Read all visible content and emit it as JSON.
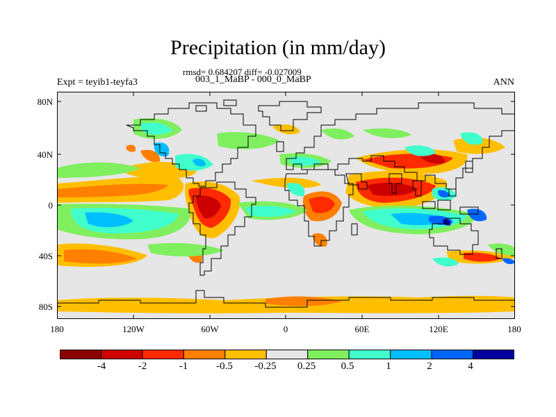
{
  "title": "Precipitation (in mm/day)",
  "stats": "rmsd= 0.684207 diff= -0.027009",
  "subtitle": "003_1_MaBP - 000_0_MaBP",
  "left_label": "Expt = teyib1-teyfa3",
  "right_label": "ANN",
  "lat_ticks": [
    "80N",
    "40N",
    "0",
    "40S",
    "80S"
  ],
  "lon_ticks": [
    "180",
    "120W",
    "60W",
    "0",
    "60E",
    "120E",
    "180"
  ],
  "colorbar": {
    "colors": [
      "#8b0000",
      "#cc0000",
      "#ff2a00",
      "#ff7f00",
      "#ffbf00",
      "#e6e6e6",
      "#7fef5f",
      "#40ffcc",
      "#00bfff",
      "#0066ff",
      "#0000a0"
    ],
    "labels": [
      "-4",
      "-2",
      "-1",
      "-0.5",
      "-0.25",
      "0.25",
      "0.5",
      "1",
      "2",
      "4"
    ]
  }
}
